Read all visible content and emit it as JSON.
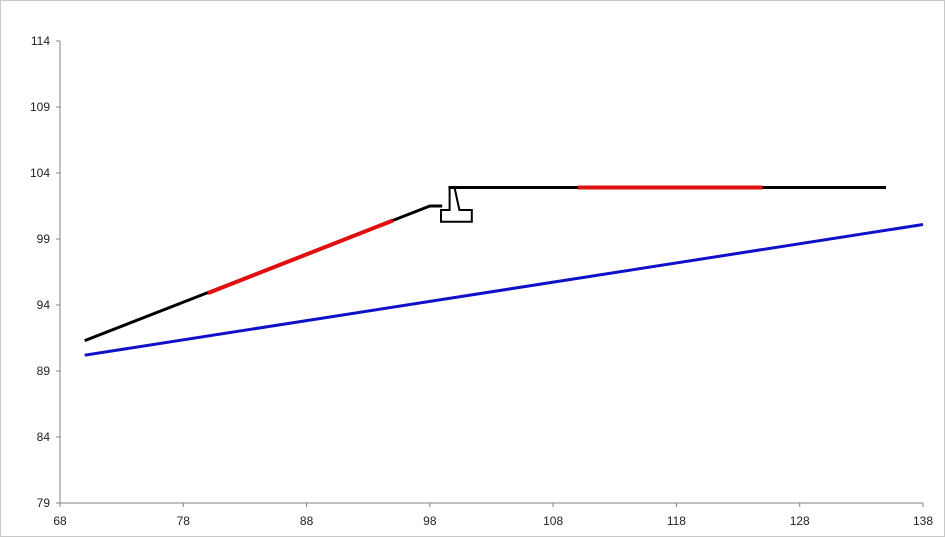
{
  "chart_data": {
    "type": "line",
    "title": "",
    "xlabel": "",
    "ylabel": "",
    "xlim": [
      68,
      138
    ],
    "ylim": [
      79,
      114
    ],
    "x_ticks": [
      68,
      78,
      88,
      98,
      108,
      118,
      128,
      138
    ],
    "y_ticks": [
      79,
      84,
      89,
      94,
      99,
      104,
      109,
      114
    ],
    "grid": false,
    "legend": "none",
    "colors": {
      "axis": "#808080",
      "text": "#222222",
      "profile": "#000000",
      "highlight": "#e01010",
      "baseline": "#1010c8"
    },
    "series": [
      {
        "color": "#1010c8",
        "width": 3,
        "points": [
          [
            70,
            90.2
          ],
          [
            138,
            100.1
          ]
        ]
      },
      {
        "color": "#000000",
        "width": 3,
        "points": [
          [
            70,
            91.3
          ],
          [
            98,
            101.5
          ],
          [
            99,
            101.5
          ]
        ]
      },
      {
        "color": "#000000",
        "width": 3,
        "points": [
          [
            99.5,
            102.9
          ],
          [
            135,
            102.9
          ]
        ]
      },
      {
        "color": "#000000",
        "width": 2,
        "points": [
          [
            99.6,
            102.9
          ],
          [
            99.6,
            101.2
          ],
          [
            98.9,
            101.2
          ],
          [
            98.9,
            100.3
          ],
          [
            101.4,
            100.3
          ],
          [
            101.4,
            101.2
          ],
          [
            100.4,
            101.2
          ],
          [
            100.0,
            102.9
          ]
        ]
      },
      {
        "color": "#e01010",
        "width": 4,
        "points": [
          [
            80,
            94.9
          ],
          [
            95,
            100.4
          ]
        ]
      },
      {
        "color": "#e01010",
        "width": 4,
        "points": [
          [
            110,
            102.9
          ],
          [
            125,
            102.9
          ]
        ]
      }
    ]
  }
}
